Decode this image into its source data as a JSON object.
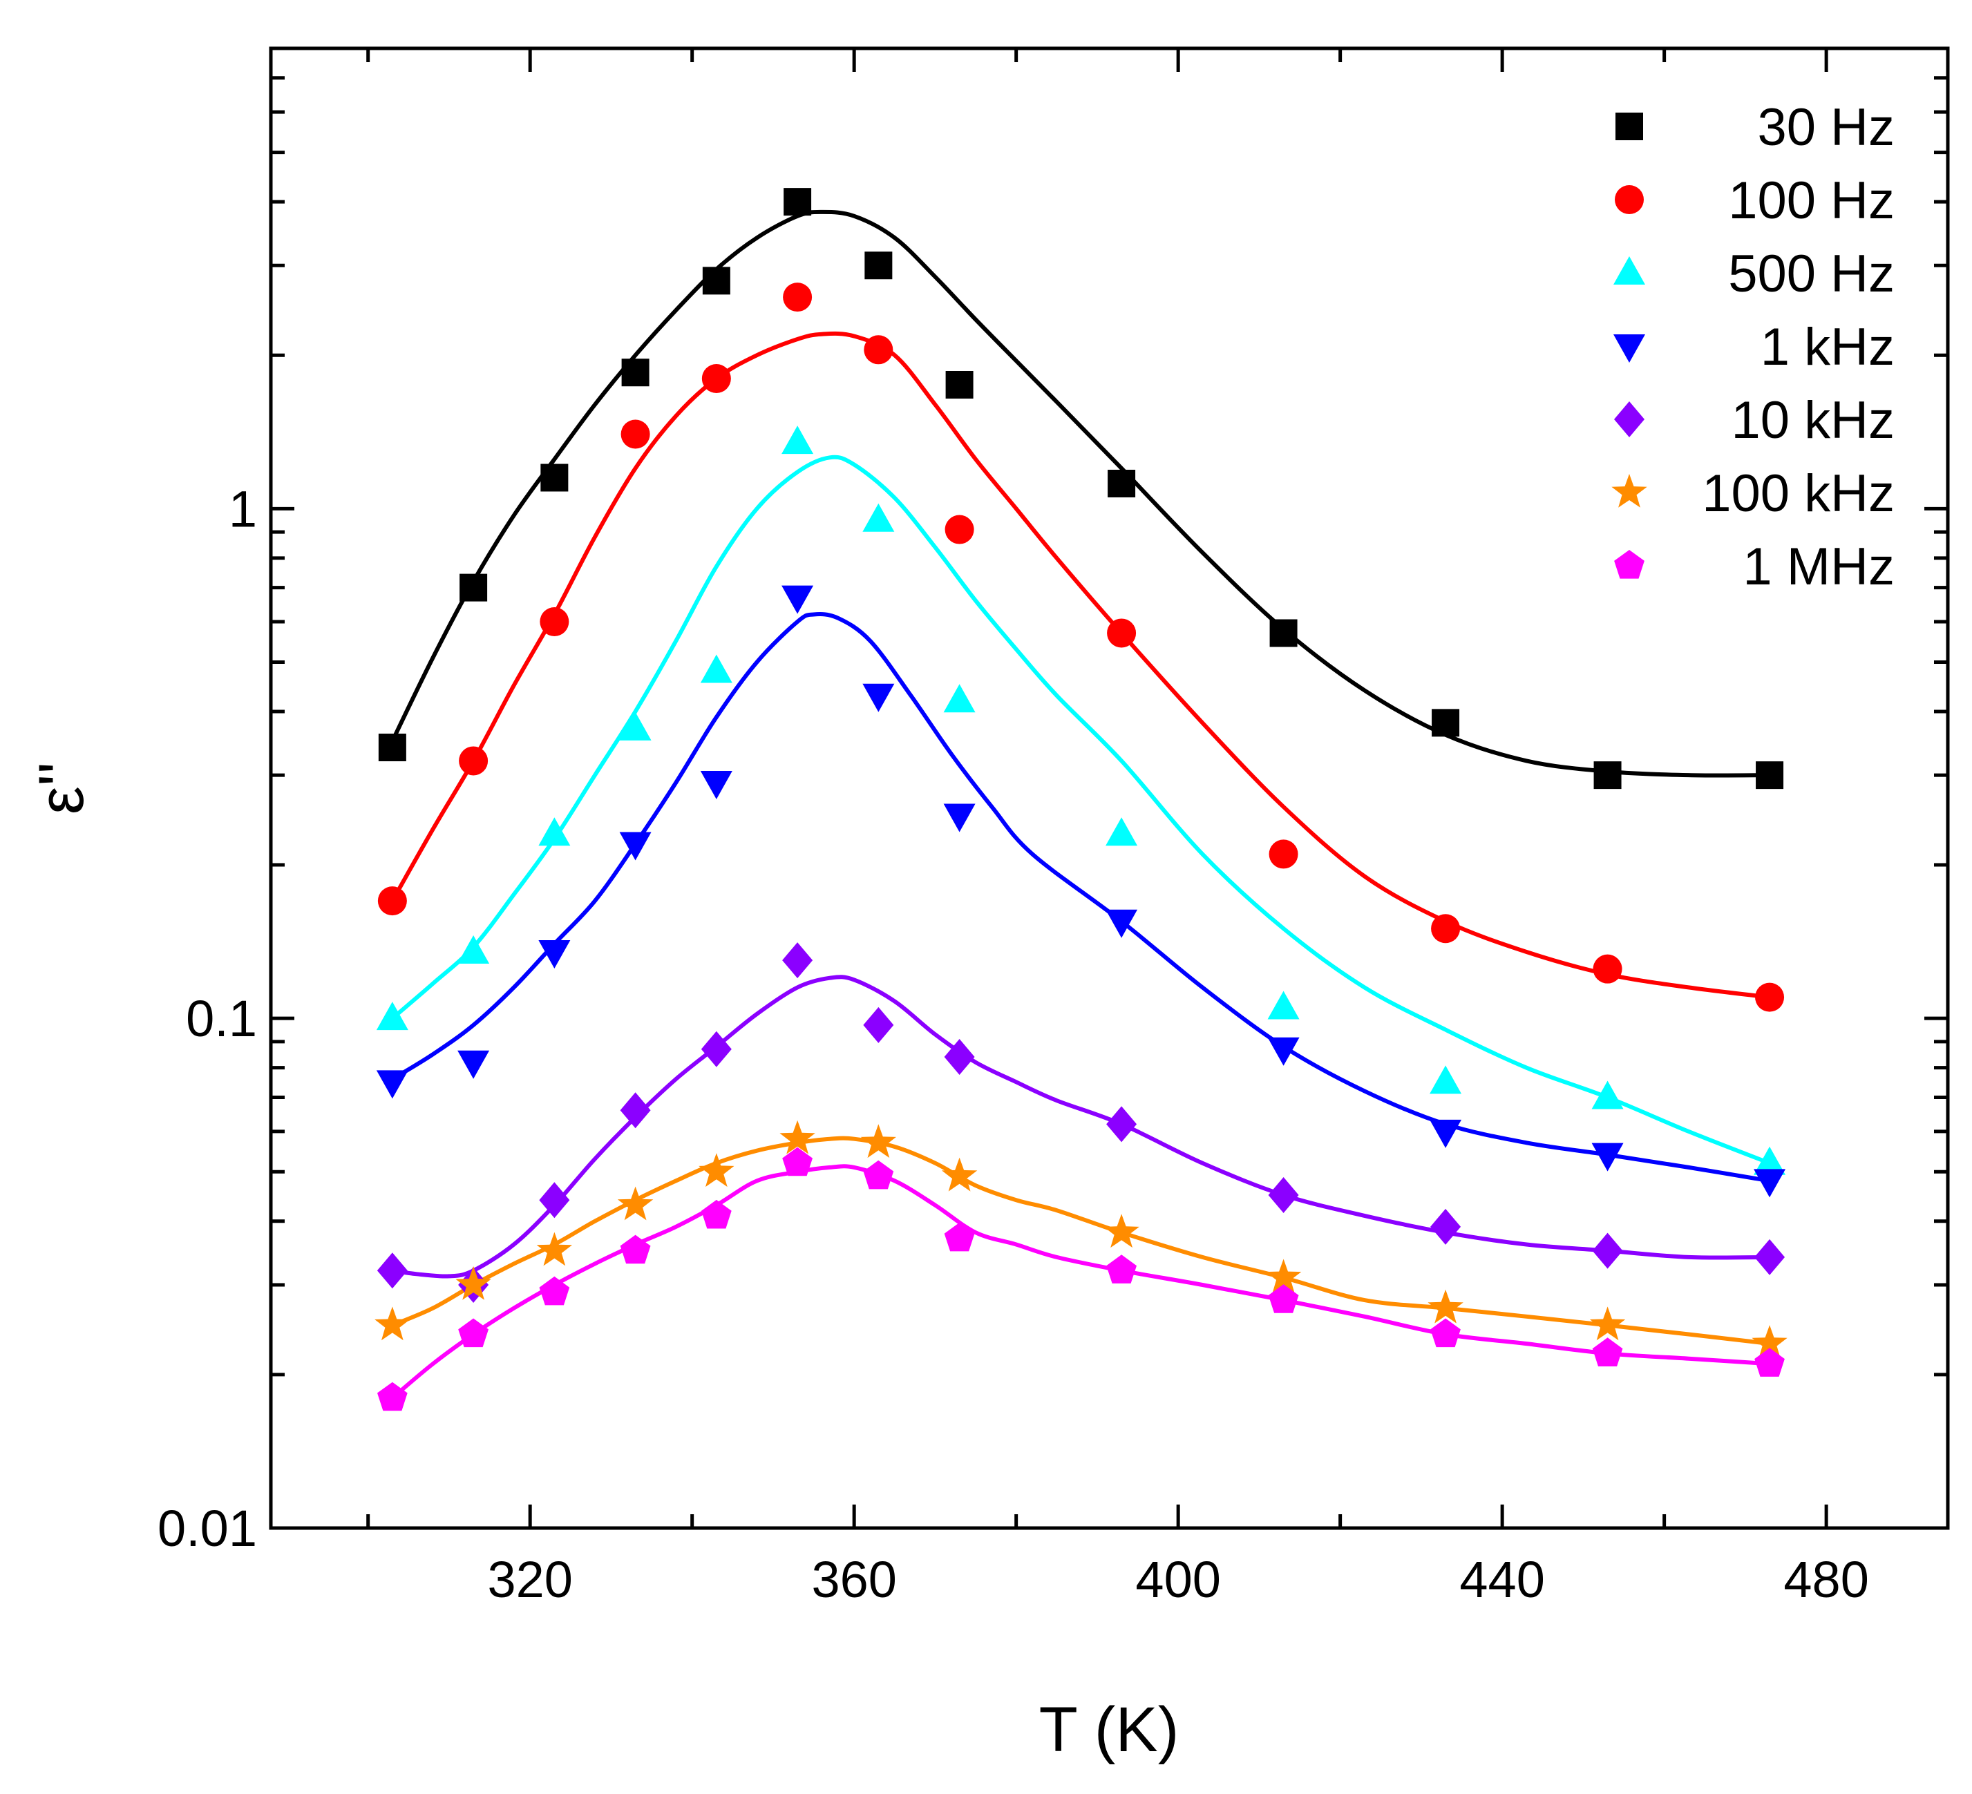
{
  "chart_data": {
    "type": "scatter",
    "title": "",
    "xlabel": "T (K)",
    "ylabel": "ε''",
    "xlim": [
      288,
      495
    ],
    "ylim": [
      0.01,
      8
    ],
    "yscale": "log",
    "xticks": [
      320,
      360,
      400,
      440,
      480
    ],
    "xtick_labels": [
      "320",
      "360",
      "400",
      "440",
      "480"
    ],
    "yticks": [
      0.01,
      0.1,
      1
    ],
    "ytick_labels": [
      "0.01",
      "0.1",
      "1"
    ],
    "legend_position": "top-right",
    "x": [
      303,
      313,
      323,
      333,
      343,
      353,
      363,
      373,
      393,
      413,
      433,
      453,
      473
    ],
    "series": [
      {
        "name": "30 Hz",
        "marker": "square",
        "color": "#000000",
        "values": [
          0.34,
          0.7,
          1.15,
          1.85,
          2.8,
          4.0,
          3.0,
          1.75,
          1.12,
          0.57,
          0.38,
          0.3,
          0.3
        ],
        "fit": [
          [
            303,
            0.35
          ],
          [
            308,
            0.51
          ],
          [
            313,
            0.72
          ],
          [
            318,
            0.97
          ],
          [
            323,
            1.25
          ],
          [
            328,
            1.6
          ],
          [
            333,
            2.0
          ],
          [
            338,
            2.45
          ],
          [
            343,
            2.95
          ],
          [
            348,
            3.4
          ],
          [
            353,
            3.75
          ],
          [
            356,
            3.82
          ],
          [
            360,
            3.75
          ],
          [
            365,
            3.4
          ],
          [
            370,
            2.85
          ],
          [
            375,
            2.35
          ],
          [
            380,
            1.95
          ],
          [
            385,
            1.62
          ],
          [
            393,
            1.2
          ],
          [
            403,
            0.82
          ],
          [
            413,
            0.58
          ],
          [
            423,
            0.44
          ],
          [
            433,
            0.36
          ],
          [
            443,
            0.32
          ],
          [
            453,
            0.305
          ],
          [
            463,
            0.3
          ],
          [
            473,
            0.3
          ]
        ]
      },
      {
        "name": "100 Hz",
        "marker": "circle",
        "color": "#ff0000",
        "values": [
          0.17,
          0.32,
          0.6,
          1.4,
          1.8,
          2.6,
          2.05,
          0.91,
          0.57,
          0.21,
          0.15,
          0.125,
          0.11
        ],
        "fit": [
          [
            303,
            0.17
          ],
          [
            308,
            0.235
          ],
          [
            313,
            0.32
          ],
          [
            318,
            0.45
          ],
          [
            323,
            0.62
          ],
          [
            328,
            0.88
          ],
          [
            333,
            1.2
          ],
          [
            338,
            1.52
          ],
          [
            343,
            1.8
          ],
          [
            348,
            2.0
          ],
          [
            353,
            2.15
          ],
          [
            356,
            2.2
          ],
          [
            360,
            2.18
          ],
          [
            365,
            2.0
          ],
          [
            370,
            1.6
          ],
          [
            375,
            1.25
          ],
          [
            380,
            1.0
          ],
          [
            385,
            0.8
          ],
          [
            393,
            0.57
          ],
          [
            403,
            0.38
          ],
          [
            413,
            0.26
          ],
          [
            423,
            0.19
          ],
          [
            433,
            0.155
          ],
          [
            443,
            0.135
          ],
          [
            453,
            0.122
          ],
          [
            463,
            0.115
          ],
          [
            473,
            0.11
          ]
        ]
      },
      {
        "name": "500 Hz",
        "marker": "triangle-up",
        "color": "#00ffff",
        "values": [
          0.1,
          0.135,
          0.23,
          0.37,
          0.48,
          1.35,
          0.95,
          0.42,
          0.23,
          0.105,
          0.075,
          0.07,
          0.052
        ],
        "fit": [
          [
            303,
            0.1
          ],
          [
            308,
            0.117
          ],
          [
            313,
            0.138
          ],
          [
            318,
            0.175
          ],
          [
            323,
            0.225
          ],
          [
            328,
            0.3
          ],
          [
            333,
            0.4
          ],
          [
            338,
            0.55
          ],
          [
            343,
            0.77
          ],
          [
            348,
            1.0
          ],
          [
            353,
            1.18
          ],
          [
            357,
            1.26
          ],
          [
            360,
            1.22
          ],
          [
            365,
            1.05
          ],
          [
            370,
            0.84
          ],
          [
            375,
            0.66
          ],
          [
            380,
            0.53
          ],
          [
            385,
            0.43
          ],
          [
            393,
            0.32
          ],
          [
            403,
            0.21
          ],
          [
            413,
            0.15
          ],
          [
            423,
            0.115
          ],
          [
            433,
            0.095
          ],
          [
            443,
            0.08
          ],
          [
            453,
            0.07
          ],
          [
            463,
            0.06
          ],
          [
            473,
            0.052
          ]
        ]
      },
      {
        "name": "1 kHz",
        "marker": "triangle-down",
        "color": "#0000ff",
        "values": [
          0.075,
          0.082,
          0.135,
          0.22,
          0.29,
          0.67,
          0.43,
          0.25,
          0.155,
          0.087,
          0.06,
          0.054,
          0.048
        ],
        "fit": [
          [
            303,
            0.076
          ],
          [
            308,
            0.085
          ],
          [
            313,
            0.097
          ],
          [
            318,
            0.115
          ],
          [
            323,
            0.14
          ],
          [
            328,
            0.17
          ],
          [
            333,
            0.22
          ],
          [
            338,
            0.29
          ],
          [
            343,
            0.39
          ],
          [
            348,
            0.5
          ],
          [
            353,
            0.6
          ],
          [
            355,
            0.62
          ],
          [
            358,
            0.61
          ],
          [
            362,
            0.55
          ],
          [
            367,
            0.43
          ],
          [
            372,
            0.33
          ],
          [
            377,
            0.26
          ],
          [
            382,
            0.21
          ],
          [
            393,
            0.155
          ],
          [
            403,
            0.115
          ],
          [
            413,
            0.088
          ],
          [
            423,
            0.072
          ],
          [
            433,
            0.062
          ],
          [
            443,
            0.057
          ],
          [
            453,
            0.054
          ],
          [
            463,
            0.051
          ],
          [
            473,
            0.048
          ]
        ]
      },
      {
        "name": "10 kHz",
        "marker": "diamond",
        "color": "#8b00ff",
        "values": [
          0.032,
          0.03,
          0.044,
          0.066,
          0.087,
          0.13,
          0.097,
          0.084,
          0.062,
          0.045,
          0.039,
          0.035,
          0.034
        ],
        "fit": [
          [
            303,
            0.032
          ],
          [
            306,
            0.0315
          ],
          [
            310,
            0.0312
          ],
          [
            313,
            0.032
          ],
          [
            318,
            0.036
          ],
          [
            323,
            0.043
          ],
          [
            328,
            0.053
          ],
          [
            333,
            0.064
          ],
          [
            338,
            0.076
          ],
          [
            343,
            0.088
          ],
          [
            348,
            0.102
          ],
          [
            353,
            0.115
          ],
          [
            357,
            0.12
          ],
          [
            360,
            0.119
          ],
          [
            365,
            0.108
          ],
          [
            370,
            0.093
          ],
          [
            375,
            0.082
          ],
          [
            380,
            0.075
          ],
          [
            385,
            0.069
          ],
          [
            393,
            0.062
          ],
          [
            403,
            0.052
          ],
          [
            413,
            0.045
          ],
          [
            423,
            0.041
          ],
          [
            433,
            0.038
          ],
          [
            443,
            0.036
          ],
          [
            453,
            0.035
          ],
          [
            463,
            0.034
          ],
          [
            473,
            0.034
          ]
        ]
      },
      {
        "name": "100 kHz",
        "marker": "star",
        "color": "#ff8c00",
        "values": [
          0.025,
          0.03,
          0.035,
          0.043,
          0.05,
          0.058,
          0.057,
          0.049,
          0.038,
          0.031,
          0.027,
          0.025,
          0.023
        ],
        "fit": [
          [
            303,
            0.025
          ],
          [
            308,
            0.027
          ],
          [
            313,
            0.03
          ],
          [
            318,
            0.033
          ],
          [
            323,
            0.036
          ],
          [
            328,
            0.04
          ],
          [
            333,
            0.044
          ],
          [
            338,
            0.048
          ],
          [
            343,
            0.052
          ],
          [
            348,
            0.055
          ],
          [
            353,
            0.057
          ],
          [
            357,
            0.058
          ],
          [
            360,
            0.058
          ],
          [
            365,
            0.056
          ],
          [
            370,
            0.052
          ],
          [
            375,
            0.047
          ],
          [
            380,
            0.044
          ],
          [
            385,
            0.042
          ],
          [
            393,
            0.038
          ],
          [
            403,
            0.034
          ],
          [
            413,
            0.031
          ],
          [
            423,
            0.028
          ],
          [
            433,
            0.027
          ],
          [
            443,
            0.026
          ],
          [
            453,
            0.025
          ],
          [
            463,
            0.024
          ],
          [
            473,
            0.023
          ]
        ]
      },
      {
        "name": "1 MHz",
        "marker": "pentagon",
        "color": "#ff00ff",
        "values": [
          0.018,
          0.024,
          0.029,
          0.035,
          0.041,
          0.052,
          0.049,
          0.037,
          0.032,
          0.028,
          0.024,
          0.022,
          0.021
        ],
        "fit": [
          [
            303,
            0.018
          ],
          [
            308,
            0.021
          ],
          [
            313,
            0.024
          ],
          [
            318,
            0.027
          ],
          [
            323,
            0.03
          ],
          [
            328,
            0.033
          ],
          [
            333,
            0.036
          ],
          [
            338,
            0.039
          ],
          [
            343,
            0.043
          ],
          [
            348,
            0.048
          ],
          [
            353,
            0.05
          ],
          [
            357,
            0.051
          ],
          [
            360,
            0.051
          ],
          [
            365,
            0.048
          ],
          [
            370,
            0.043
          ],
          [
            375,
            0.038
          ],
          [
            380,
            0.036
          ],
          [
            385,
            0.034
          ],
          [
            393,
            0.032
          ],
          [
            403,
            0.03
          ],
          [
            413,
            0.028
          ],
          [
            423,
            0.026
          ],
          [
            433,
            0.024
          ],
          [
            443,
            0.023
          ],
          [
            453,
            0.022
          ],
          [
            463,
            0.0215
          ],
          [
            473,
            0.021
          ]
        ]
      }
    ]
  }
}
